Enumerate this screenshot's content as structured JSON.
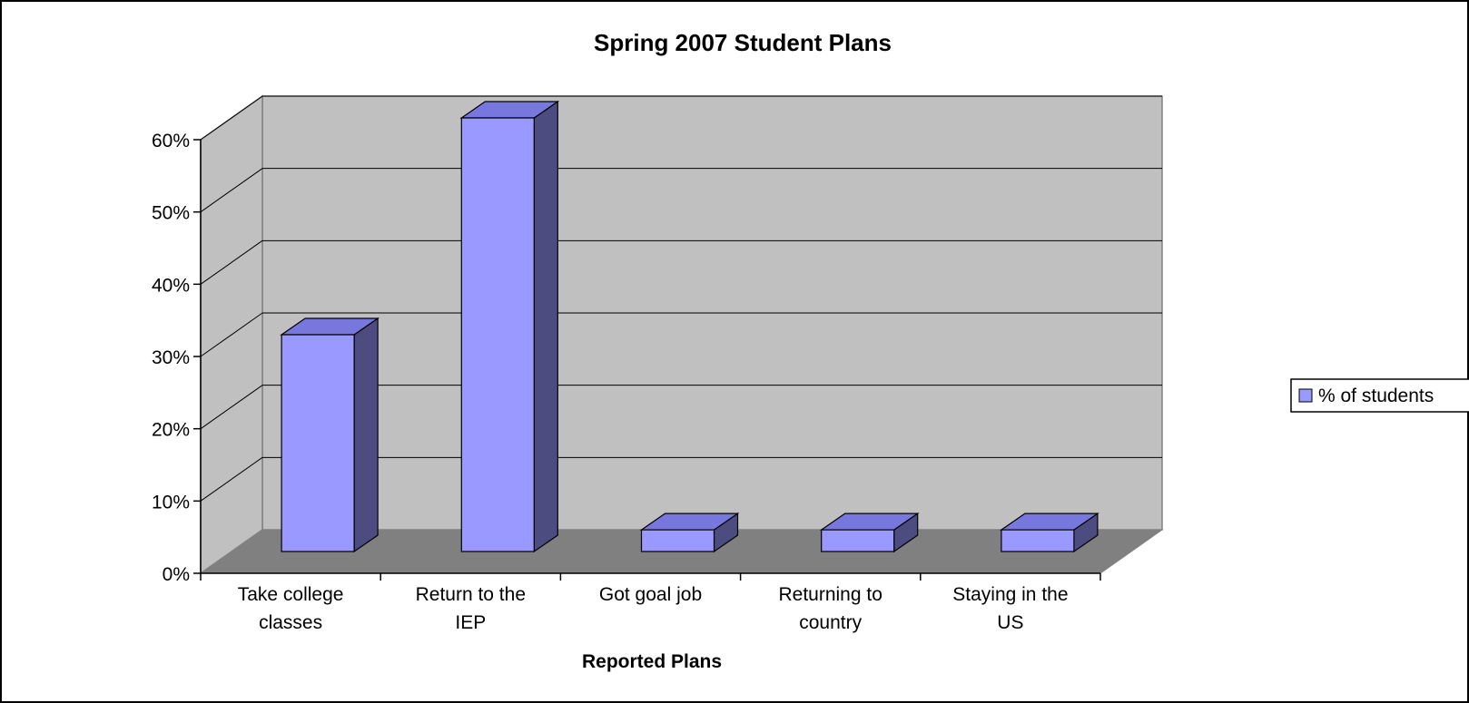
{
  "chart_data": {
    "type": "bar",
    "style": "3d-column",
    "title": "Spring 2007 Student Plans",
    "xlabel": "Reported Plans",
    "ylabel": "",
    "categories": [
      [
        "Take college",
        "classes"
      ],
      [
        "Return to the",
        "IEP"
      ],
      [
        "Got goal job"
      ],
      [
        "Returning to",
        "country"
      ],
      [
        "Staying in the",
        "US"
      ]
    ],
    "series": [
      {
        "name": "% of students",
        "values": [
          30,
          60,
          3,
          3,
          3
        ]
      }
    ],
    "ylim": [
      0,
      60
    ],
    "y_ticks": [
      "0%",
      "10%",
      "20%",
      "30%",
      "40%",
      "50%",
      "60%"
    ],
    "grid": true,
    "legend_position": "right",
    "colors": {
      "bar_front": "#9999FF",
      "bar_top": "#7777DD",
      "bar_side": "#4C4C80",
      "back_wall": "#C0C0C0",
      "side_wall": "#C0C0C0",
      "floor": "#808080",
      "frame": "#000000"
    }
  }
}
